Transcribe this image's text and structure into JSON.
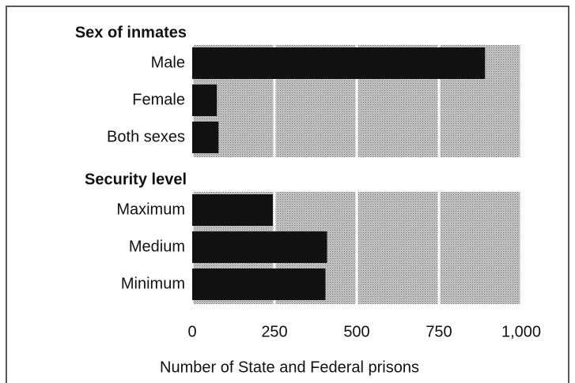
{
  "chart_data": {
    "type": "bar",
    "orientation": "horizontal",
    "groups": [
      {
        "title": "Sex of inmates",
        "categories": [
          "Male",
          "Female",
          "Both sexes"
        ],
        "values": [
          890,
          75,
          80
        ]
      },
      {
        "title": "Security level",
        "categories": [
          "Maximum",
          "Medium",
          "Minimum"
        ],
        "values": [
          245,
          410,
          405
        ]
      }
    ],
    "color": "#111111",
    "grid": true,
    "xlim": [
      0,
      1000
    ],
    "xticks": [
      0,
      250,
      500,
      750,
      {
        "value": 1000,
        "label": "1,000"
      }
    ],
    "xlabel": "Number of State and Federal prisons"
  }
}
